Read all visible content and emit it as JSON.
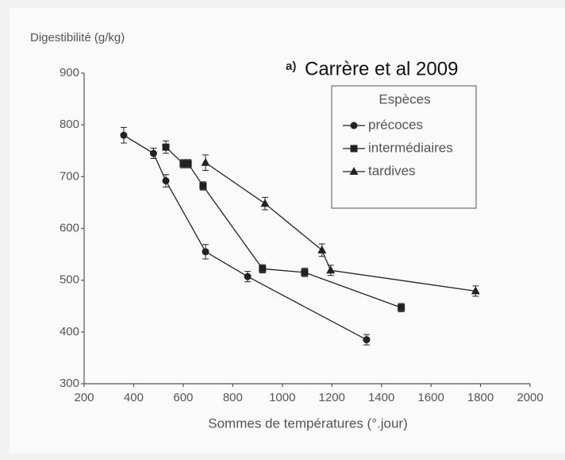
{
  "chart_data": {
    "type": "line",
    "ylabel": "Digestibilité (g/kg)",
    "xlabel": "Sommes de températures (°.jour)",
    "annotation_label": "a)",
    "annotation": "Carrère et al 2009",
    "legend_title": "Espèces",
    "xlim": [
      200,
      2000
    ],
    "xticks": [
      200,
      400,
      600,
      800,
      1000,
      1200,
      1400,
      1600,
      1800,
      2000
    ],
    "ylim": [
      300,
      900
    ],
    "yticks": [
      300,
      400,
      500,
      600,
      700,
      800,
      900
    ],
    "series": [
      {
        "name": "précoces",
        "color": "#222222",
        "marker": "circle",
        "x": [
          360,
          480,
          530,
          690,
          860,
          1340
        ],
        "values": [
          780,
          745,
          692,
          555,
          507,
          385
        ],
        "errors": [
          15,
          10,
          12,
          14,
          10,
          10
        ]
      },
      {
        "name": "intermédiaires",
        "color": "#222222",
        "marker": "square",
        "x": [
          530,
          600,
          620,
          680,
          920,
          1090,
          1480
        ],
        "values": [
          757,
          725,
          725,
          682,
          522,
          515,
          447
        ],
        "errors": [
          12,
          8,
          8,
          8,
          8,
          8,
          8
        ]
      },
      {
        "name": "tardives",
        "color": "#222222",
        "marker": "triangle",
        "x": [
          690,
          930,
          1160,
          1195,
          1780
        ],
        "values": [
          727,
          648,
          558,
          519,
          479
        ],
        "errors": [
          15,
          12,
          12,
          10,
          10
        ]
      }
    ]
  }
}
